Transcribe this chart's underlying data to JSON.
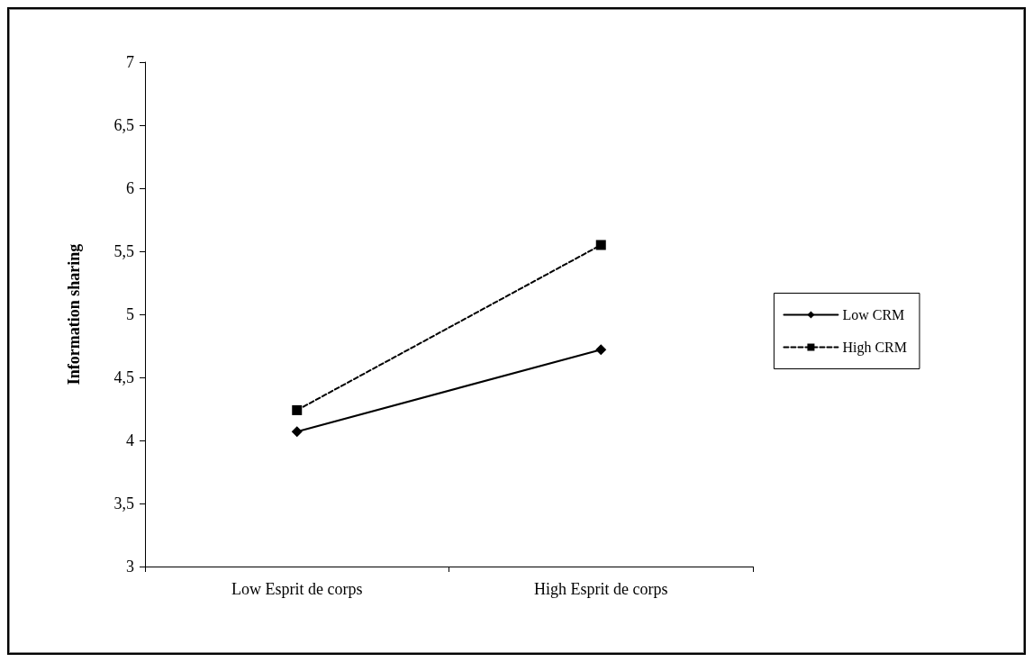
{
  "chart_data": {
    "type": "line",
    "ylabel": "Information sharing",
    "categories": [
      "Low Esprit de corps",
      "High Esprit de corps"
    ],
    "series": [
      {
        "name": "Low CRM",
        "color": "#000000",
        "values": [
          4.07,
          4.72
        ],
        "marker": "diamond",
        "line_style": "solid"
      },
      {
        "name": "High CRM",
        "color": "#000000",
        "values": [
          4.24,
          5.55
        ],
        "marker": "square",
        "line_style": "dashed"
      }
    ],
    "ylim": [
      3,
      7
    ],
    "yticks": [
      3,
      {
        "value": 3.5,
        "label": "3,5"
      },
      4,
      {
        "value": 4.5,
        "label": "4,5"
      },
      5,
      {
        "value": 5.5,
        "label": "5,5"
      },
      6,
      {
        "value": 6.5,
        "label": "6,5"
      },
      7
    ],
    "grid": false,
    "legend": "right"
  }
}
